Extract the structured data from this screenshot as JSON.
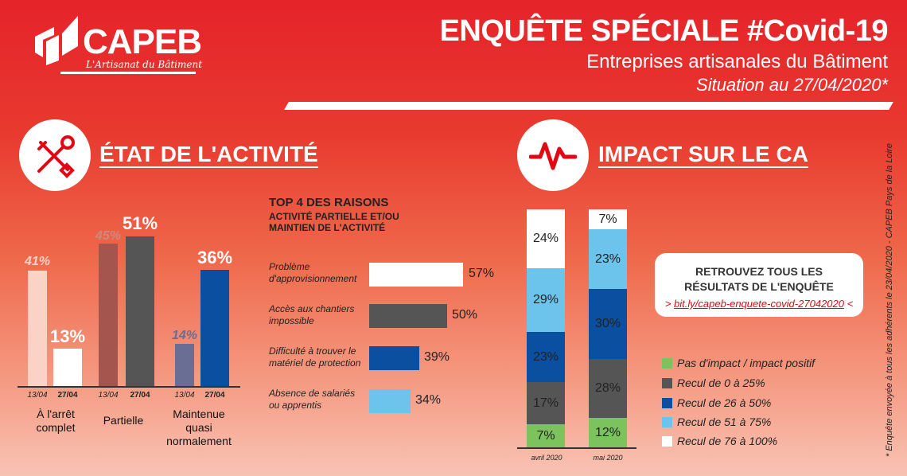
{
  "brand": {
    "name": "CAPEB",
    "tagline": "L'Artisanat du Bâtiment",
    "color": "#e30613"
  },
  "header": {
    "title": "ENQUÊTE SPÉCIALE #Covid-19",
    "subtitle": "Entreprises artisanales du Bâtiment",
    "situation": "Situation au 27/04/2020*"
  },
  "activity": {
    "title": "ÉTAT DE L'ACTIVITÉ",
    "icon": "tools-icon",
    "dates": [
      "13/04",
      "27/04"
    ],
    "groups": [
      {
        "label_lines": [
          "À l'arrêt",
          "complet"
        ],
        "values": [
          41,
          13
        ],
        "labels": [
          "41%",
          "13%"
        ]
      },
      {
        "label_lines": [
          "Partielle"
        ],
        "values": [
          45,
          51
        ],
        "labels": [
          "45%",
          "51%"
        ]
      },
      {
        "label_lines": [
          "Maintenue",
          "quasi",
          "normalement"
        ],
        "values": [
          14,
          36
        ],
        "labels": [
          "14%",
          "36%"
        ]
      }
    ]
  },
  "reasons": {
    "title": "TOP 4 DES RAISONS",
    "subtitle_lines": [
      "ACTIVITÉ PARTIELLE ET/OU",
      "MAINTIEN DE L'ACTIVITÉ"
    ],
    "items": [
      {
        "label_lines": [
          "Problème",
          "d'approvisionnement"
        ],
        "value": 57,
        "label": "57%",
        "color": "#ffffff"
      },
      {
        "label_lines": [
          "Accès aux chantiers",
          "impossible"
        ],
        "value": 50,
        "label": "50%",
        "color": "#555555"
      },
      {
        "label_lines": [
          "Difficulté à trouver le",
          "matériel de protection"
        ],
        "value": 39,
        "label": "39%",
        "color": "#0a4fa0"
      },
      {
        "label_lines": [
          "Absence de salariés",
          "ou apprentis"
        ],
        "value": 34,
        "label": "34%",
        "color": "#6cc4ec"
      }
    ]
  },
  "impact": {
    "title": "IMPACT SUR LE CA",
    "icon": "pulse-icon",
    "columns": [
      {
        "label": "avril 2020",
        "segments": [
          7,
          17,
          23,
          29,
          24
        ],
        "labels": [
          "7%",
          "17%",
          "23%",
          "29%",
          "24%"
        ]
      },
      {
        "label": "mai 2020",
        "segments": [
          12,
          28,
          30,
          23,
          7
        ],
        "labels": [
          "12%",
          "28%",
          "30%",
          "23%",
          "7%"
        ]
      }
    ],
    "legend": [
      {
        "label": "Pas d'impact / impact positif",
        "color": "#7cc35e"
      },
      {
        "label": "Recul de 0 à 25%",
        "color": "#555555"
      },
      {
        "label": "Recul de 26 à 50%",
        "color": "#0a4fa0"
      },
      {
        "label": "Recul de 51 à 75%",
        "color": "#6cc4ec"
      },
      {
        "label": "Recul de  76 à 100%",
        "color": "#ffffff"
      }
    ]
  },
  "cta": {
    "title_lines": [
      "RETROUVEZ TOUS LES",
      "RÉSULTATS DE L'ENQUÊTE"
    ],
    "link": "bit.ly/capeb-enquete-covid-27042020",
    "link_prefix": "> ",
    "link_suffix": " <"
  },
  "footnote": "* Enquête envoyée à tous les adhérents le 23/04/2020 - CAPEB Pays de la Loire"
}
